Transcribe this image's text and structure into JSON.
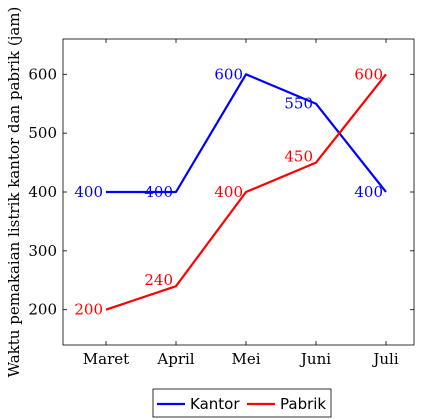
{
  "chart_data": {
    "type": "line",
    "categories": [
      "Maret",
      "April",
      "Mei",
      "Juni",
      "Juli"
    ],
    "ylabel": "Waktu pemakaian listrik kantor dan pabrik (jam)",
    "xlabel": "",
    "ylim": [
      140,
      660
    ],
    "yticks": [
      200,
      300,
      400,
      500,
      600
    ],
    "grid": false,
    "legend_position": "bottom",
    "series": [
      {
        "name": "Kantor",
        "color": "#0000ff",
        "values": [
          400,
          400,
          600,
          550,
          400
        ],
        "labels": [
          "400",
          "400",
          "600",
          "550",
          "400"
        ]
      },
      {
        "name": "Pabrik",
        "color": "#ff0000",
        "values": [
          200,
          240,
          400,
          450,
          600
        ],
        "labels": [
          "200",
          "240",
          "400",
          "450",
          "600"
        ]
      }
    ]
  }
}
